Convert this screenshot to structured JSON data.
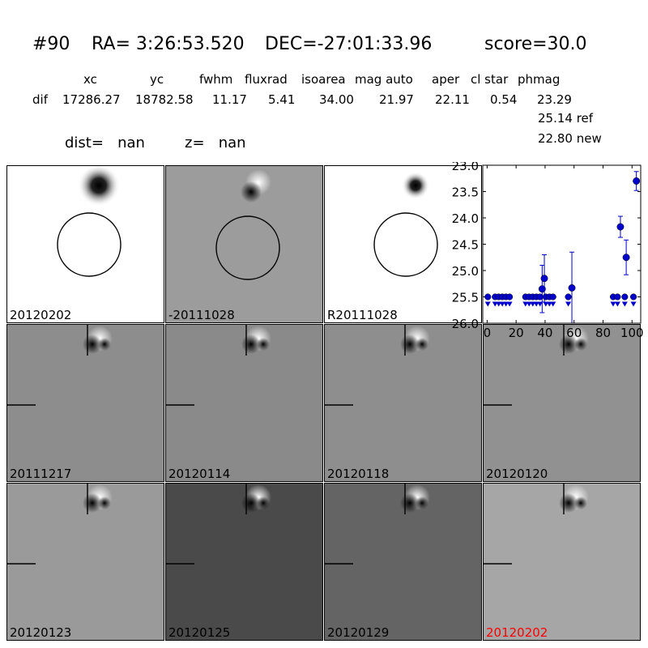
{
  "header": {
    "id": "#90",
    "ra_label": "RA= 3:26:53.520",
    "dec_label": "DEC=-27:01:33.96",
    "score_label": "score=30.0"
  },
  "table": {
    "columns": [
      "xc",
      "yc",
      "fwhm",
      "fluxrad",
      "isoarea",
      "mag auto",
      "aper",
      "cl star",
      "phmag"
    ],
    "row_label": "dif",
    "values": [
      "17286.27",
      "18782.58",
      "11.17",
      "5.41",
      "34.00",
      "21.97",
      "22.11",
      "0.54",
      "23.29"
    ],
    "ref_line": "25.14 ref",
    "new_line": "22.80 new"
  },
  "dist_text": "dist=   nan",
  "z_text": "z=   nan",
  "panels": [
    {
      "label": "20120202",
      "bg": "#ffffff",
      "kind": "star-circle",
      "label_color": "#000000"
    },
    {
      "label": "-20111028",
      "bg": "#9c9c9c",
      "kind": "diff-circle",
      "label_color": "#000000"
    },
    {
      "label": "R20111028",
      "bg": "#ffffff",
      "kind": "star-circle-small",
      "label_color": "#000000"
    },
    {
      "label": "20111217",
      "bg": "#8d8d8d",
      "kind": "diff-ticks",
      "label_color": "#000000"
    },
    {
      "label": "20120114",
      "bg": "#8a8a8a",
      "kind": "diff-ticks",
      "label_color": "#000000"
    },
    {
      "label": "20120118",
      "bg": "#8e8e8e",
      "kind": "diff-ticks",
      "label_color": "#000000"
    },
    {
      "label": "20120120",
      "bg": "#919191",
      "kind": "diff-ticks",
      "label_color": "#000000"
    },
    {
      "label": "20120123",
      "bg": "#9a9a9a",
      "kind": "diff-ticks",
      "label_color": "#000000"
    },
    {
      "label": "20120125",
      "bg": "#4a4a4a",
      "kind": "diff-ticks",
      "label_color": "#000000"
    },
    {
      "label": "20120129",
      "bg": "#646464",
      "kind": "diff-ticks",
      "label_color": "#000000"
    },
    {
      "label": "20120202",
      "bg": "#a6a6a6",
      "kind": "diff-ticks",
      "label_color": "#ff0000"
    }
  ],
  "chart_data": {
    "type": "scatter",
    "marker_color": "#0000cc",
    "ylim": [
      26.0,
      23.0
    ],
    "xlim": [
      -3,
      106
    ],
    "y_ticks": [
      "23.0",
      "23.5",
      "24.0",
      "24.5",
      "25.0",
      "25.5",
      "26.0"
    ],
    "x_ticks": [
      "0",
      "20",
      "40",
      "60",
      "80",
      "100"
    ],
    "points": [
      {
        "x": 38.0,
        "y": 25.35,
        "err": 0.45
      },
      {
        "x": 39.5,
        "y": 25.15,
        "err": 0.45
      },
      {
        "x": 58.5,
        "y": 25.33,
        "err": 0.68
      },
      {
        "x": 92.0,
        "y": 24.17,
        "err": 0.2
      },
      {
        "x": 96.0,
        "y": 24.75,
        "err": 0.33
      },
      {
        "x": 103.0,
        "y": 23.3,
        "err": 0.18
      }
    ],
    "upper_limits": [
      {
        "x": 0.5,
        "y": 25.5
      },
      {
        "x": 5.5,
        "y": 25.5
      },
      {
        "x": 8.0,
        "y": 25.5
      },
      {
        "x": 10.5,
        "y": 25.5
      },
      {
        "x": 13.0,
        "y": 25.5
      },
      {
        "x": 15.5,
        "y": 25.5
      },
      {
        "x": 26.5,
        "y": 25.5
      },
      {
        "x": 29.0,
        "y": 25.5
      },
      {
        "x": 31.5,
        "y": 25.5
      },
      {
        "x": 34.0,
        "y": 25.5
      },
      {
        "x": 36.5,
        "y": 25.5
      },
      {
        "x": 40.5,
        "y": 25.5
      },
      {
        "x": 43.0,
        "y": 25.5
      },
      {
        "x": 45.5,
        "y": 25.5
      },
      {
        "x": 56.0,
        "y": 25.5
      },
      {
        "x": 87.0,
        "y": 25.5
      },
      {
        "x": 90.0,
        "y": 25.5
      },
      {
        "x": 95.0,
        "y": 25.5
      },
      {
        "x": 101.0,
        "y": 25.5
      }
    ]
  }
}
